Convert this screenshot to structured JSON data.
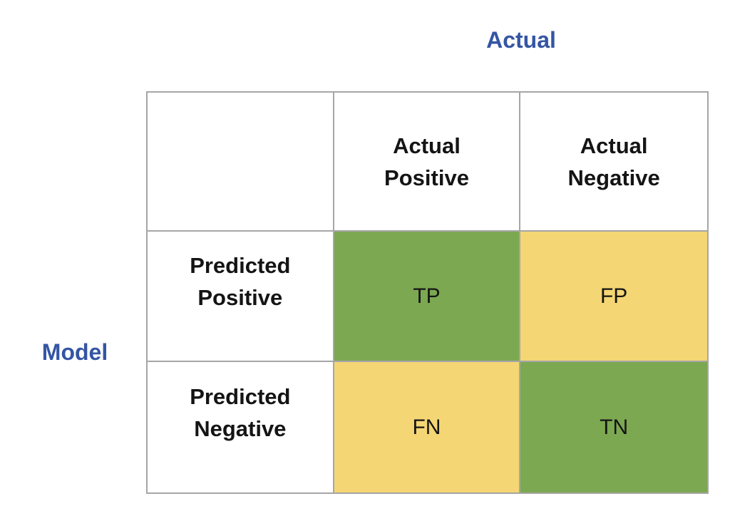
{
  "labels": {
    "actual_axis": "Actual",
    "model_axis": "Model"
  },
  "colors": {
    "axis_label_blue": "#3455A4",
    "positive_cell_green": "#7CA851",
    "negative_cell_yellow": "#F5D674",
    "grid_border_gray": "#A6A6A6",
    "header_text": "#141414"
  },
  "matrix": {
    "column_headers": [
      "Actual\nPositive",
      "Actual\nNegative"
    ],
    "row_headers": [
      "Predicted\nPositive",
      "Predicted\nNegative"
    ],
    "cells": [
      {
        "label": "TP",
        "meaning": "True Positive",
        "tone": "green"
      },
      {
        "label": "FP",
        "meaning": "False Positive",
        "tone": "yellow"
      },
      {
        "label": "FN",
        "meaning": "False Negative",
        "tone": "yellow"
      },
      {
        "label": "TN",
        "meaning": "True Negative",
        "tone": "green"
      }
    ]
  }
}
